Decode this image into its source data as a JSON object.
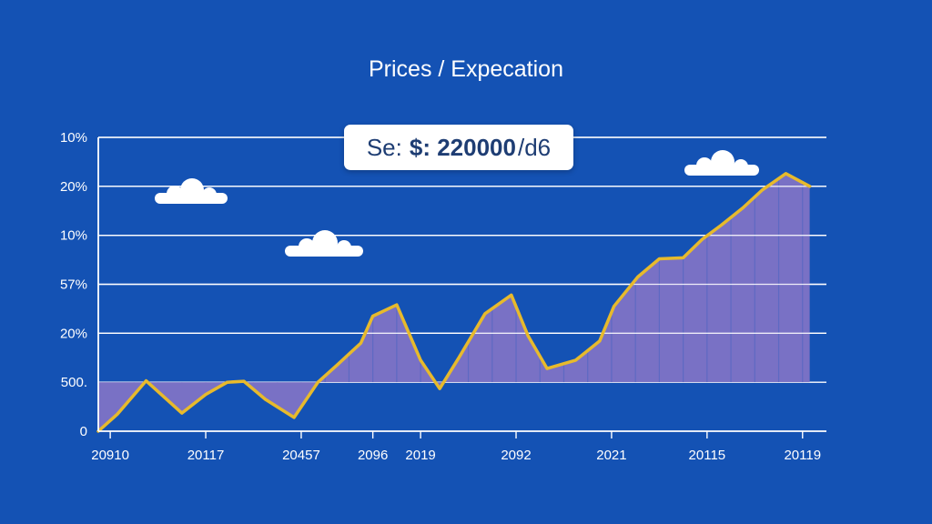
{
  "chart_data": {
    "type": "area",
    "title": "Prices / Expecation",
    "annotation": {
      "prefix": "Se:",
      "strong": "$: 220000",
      "suffix": "/d6"
    },
    "y_tick_labels": [
      "0",
      "500.",
      "20%",
      "57%",
      "10%",
      "20%",
      "10%"
    ],
    "x_tick_labels": [
      "20910",
      "20117",
      "20457",
      "2096",
      "2019",
      "2092",
      "2021",
      "20115",
      "20119"
    ],
    "x_tick_positions": [
      0.5,
      4.5,
      8.5,
      11.5,
      13.5,
      17.5,
      21.5,
      25.5,
      29.5
    ],
    "xlim": [
      0,
      30.5
    ],
    "ylim": [
      0,
      6
    ],
    "series": [
      {
        "name": "Prices",
        "x": [
          0,
          0.8,
          2,
          3.5,
          4.5,
          5.4,
          6.1,
          7,
          8.2,
          9.2,
          10,
          11,
          11.5,
          12.5,
          13.5,
          14.3,
          15.1,
          16.2,
          17.3,
          18,
          18.8,
          20,
          21,
          21.6,
          22.6,
          23.5,
          24.5,
          25.3,
          26.1,
          27,
          27.8,
          28.8,
          29.8
        ],
        "y": [
          0,
          0.35,
          1.03,
          0.37,
          0.75,
          1.0,
          1.02,
          0.65,
          0.28,
          1.0,
          1.35,
          1.8,
          2.35,
          2.58,
          1.45,
          0.87,
          1.5,
          2.4,
          2.78,
          1.95,
          1.28,
          1.45,
          1.84,
          2.55,
          3.15,
          3.52,
          3.54,
          3.92,
          4.21,
          4.56,
          4.92,
          5.26,
          5.0
        ]
      }
    ],
    "colors": {
      "background": "#1452b4",
      "area_fill": "#7e73c6",
      "line": "#e7ba2c",
      "grid": "#ffffff",
      "badge_bg": "#ffffff",
      "badge_text": "#1e3d73"
    },
    "grid": true
  },
  "decorations": {
    "clouds": [
      "cloud-icon",
      "cloud-icon",
      "cloud-icon"
    ]
  }
}
